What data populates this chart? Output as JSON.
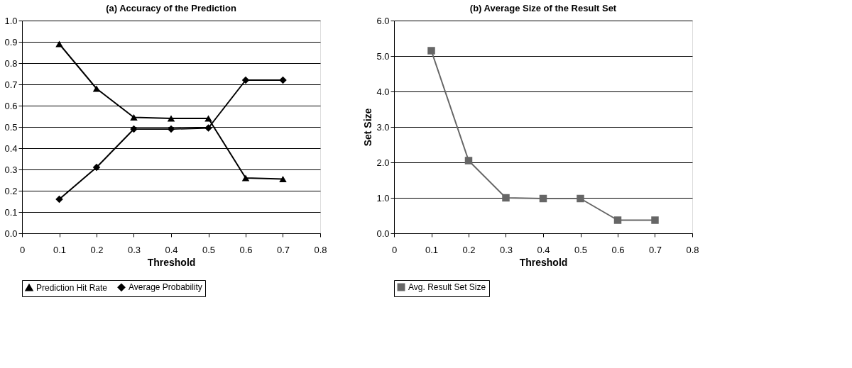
{
  "chart_data": [
    {
      "type": "line",
      "title": "(a) Accuracy of the Prediction",
      "xlabel": "Threshold",
      "x": [
        0.1,
        0.2,
        0.3,
        0.4,
        0.5,
        0.6,
        0.7
      ],
      "series": [
        {
          "name": "Prediction Hit Rate",
          "color": "#000000",
          "marker": "triangle",
          "values": [
            0.89,
            0.68,
            0.545,
            0.54,
            0.54,
            0.26,
            0.255
          ]
        },
        {
          "name": "Average Probability",
          "color": "#000000",
          "marker": "diamond",
          "values": [
            0.16,
            0.31,
            0.49,
            0.49,
            0.495,
            0.72,
            0.72
          ]
        }
      ],
      "xlim": [
        0,
        0.8
      ],
      "xticks": [
        0,
        0.1,
        0.2,
        0.3,
        0.4,
        0.5,
        0.6,
        0.7,
        0.8
      ],
      "ylim": [
        0,
        1.0
      ],
      "yticks": [
        {
          "value": 0,
          "label": "0.0"
        },
        0.1,
        0.2,
        0.3,
        0.4,
        0.5,
        0.6,
        0.7,
        0.8,
        0.9,
        {
          "value": 1,
          "label": "1.0"
        }
      ],
      "grid": "y",
      "legend": "bottom",
      "line_style": "solid"
    },
    {
      "type": "line",
      "title": "(b) Average Size of the Result Set",
      "xlabel": "Threshold",
      "ylabel": "Set Size",
      "x": [
        0.1,
        0.2,
        0.3,
        0.4,
        0.5,
        0.6,
        0.7
      ],
      "series": [
        {
          "name": "Avg. Result Set Size",
          "color": "#666666",
          "marker": "square",
          "values": [
            5.15,
            2.05,
            1.0,
            0.98,
            0.98,
            0.37,
            0.37
          ]
        }
      ],
      "xlim": [
        0,
        0.8
      ],
      "xticks": [
        0,
        0.1,
        0.2,
        0.3,
        0.4,
        0.5,
        0.6,
        0.7,
        0.8
      ],
      "ylim": [
        0,
        6.0
      ],
      "yticks": [
        {
          "value": 0,
          "label": "0.0"
        },
        {
          "value": 1,
          "label": "1.0"
        },
        {
          "value": 2,
          "label": "2.0"
        },
        {
          "value": 3,
          "label": "3.0"
        },
        {
          "value": 4,
          "label": "4.0"
        },
        {
          "value": 5,
          "label": "5.0"
        },
        {
          "value": 6,
          "label": "6.0"
        }
      ],
      "grid": "y",
      "legend": "bottom",
      "line_style": "solid"
    }
  ]
}
